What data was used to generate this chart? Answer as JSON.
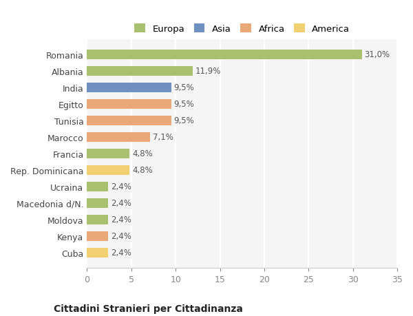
{
  "categories": [
    "Cuba",
    "Kenya",
    "Moldova",
    "Macedonia d/N.",
    "Ucraina",
    "Rep. Dominicana",
    "Francia",
    "Marocco",
    "Tunisia",
    "Egitto",
    "India",
    "Albania",
    "Romania"
  ],
  "values": [
    2.4,
    2.4,
    2.4,
    2.4,
    2.4,
    4.8,
    4.8,
    7.1,
    9.5,
    9.5,
    9.5,
    11.9,
    31.0
  ],
  "colors": [
    "#f0d070",
    "#e8a878",
    "#a8c070",
    "#a8c070",
    "#a8c070",
    "#f0d070",
    "#a8c070",
    "#e8a878",
    "#e8a878",
    "#e8a878",
    "#7090c0",
    "#a8c070",
    "#a8c070"
  ],
  "legend": [
    {
      "label": "Europa",
      "color": "#a8c070"
    },
    {
      "label": "Asia",
      "color": "#7090c0"
    },
    {
      "label": "Africa",
      "color": "#e8a878"
    },
    {
      "label": "America",
      "color": "#f0d070"
    }
  ],
  "xlim": [
    0,
    35
  ],
  "xticks": [
    0,
    5,
    10,
    15,
    20,
    25,
    30,
    35
  ],
  "title1": "Cittadini Stranieri per Cittadinanza",
  "bg_color": "#ffffff",
  "plot_bg_color": "#f5f5f5",
  "grid_color": "#ffffff",
  "bar_label_color": "#555555",
  "axis_label_color": "#888888",
  "figsize": [
    6.0,
    4.6
  ],
  "dpi": 100
}
